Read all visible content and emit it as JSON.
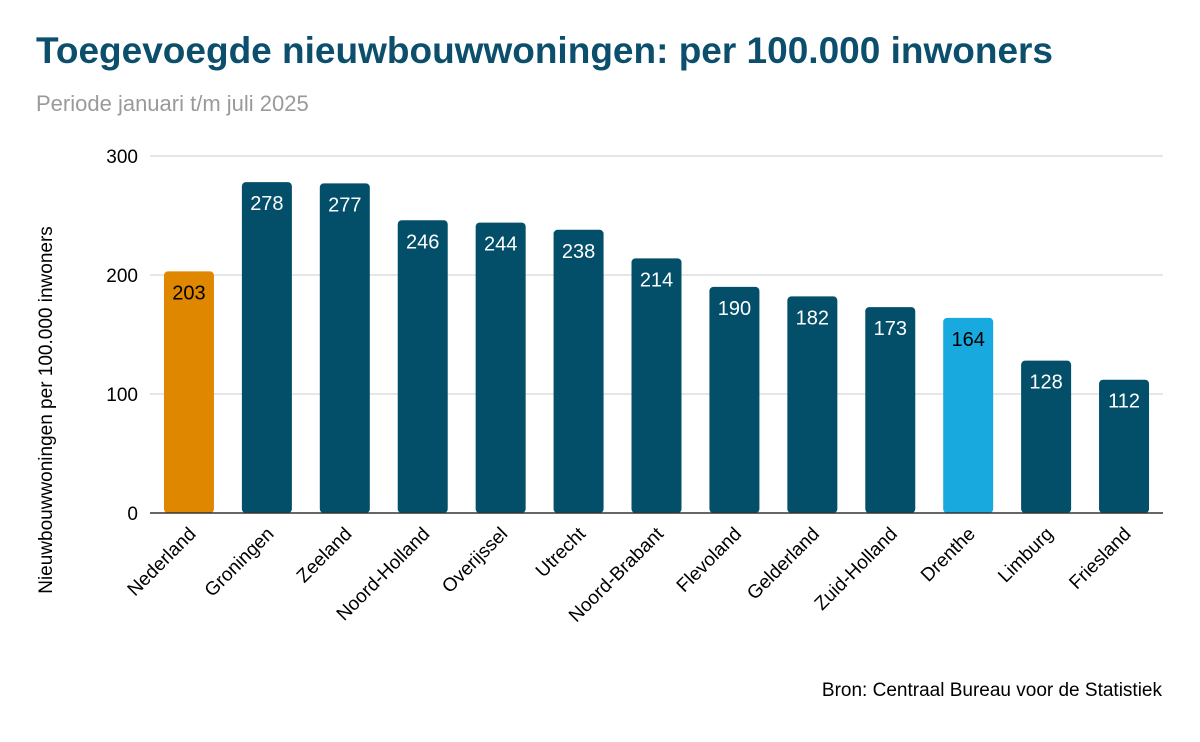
{
  "chart_data": {
    "type": "bar",
    "title": "Toegevoegde nieuwbouwwoningen: per 100.000 inwoners",
    "subtitle": "Periode januari t/m juli 2025",
    "xlabel": "",
    "ylabel": "Nieuwbouwwoningen per 100.000 inwoners",
    "ylim": [
      0,
      300
    ],
    "yticks": [
      0,
      100,
      200,
      300
    ],
    "grid": true,
    "categories": [
      "Nederland",
      "Groningen",
      "Zeeland",
      "Noord-Holland",
      "Overijssel",
      "Utrecht",
      "Noord-Brabant",
      "Flevoland",
      "Gelderland",
      "Zuid-Holland",
      "Drenthe",
      "Limburg",
      "Friesland"
    ],
    "values": [
      203,
      278,
      277,
      246,
      244,
      238,
      214,
      190,
      182,
      173,
      164,
      128,
      112
    ],
    "colors": [
      "#e08700",
      "#034f6a",
      "#034f6a",
      "#034f6a",
      "#034f6a",
      "#034f6a",
      "#034f6a",
      "#034f6a",
      "#034f6a",
      "#034f6a",
      "#18a9df",
      "#034f6a",
      "#034f6a"
    ],
    "label_colors": [
      "#000000",
      "#ffffff",
      "#ffffff",
      "#ffffff",
      "#ffffff",
      "#ffffff",
      "#ffffff",
      "#ffffff",
      "#ffffff",
      "#ffffff",
      "#000000",
      "#ffffff",
      "#ffffff"
    ],
    "source": "Bron: Centraal Bureau voor de Statistiek"
  }
}
